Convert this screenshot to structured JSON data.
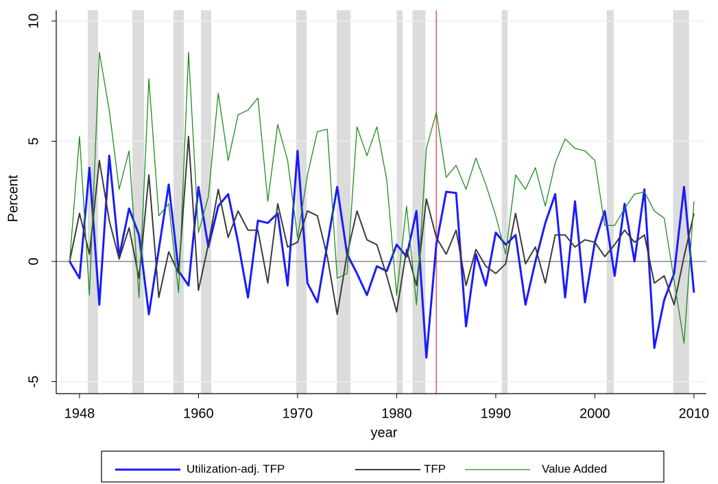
{
  "chart_data": {
    "type": "line",
    "x_label": "year",
    "y_label": "Percent",
    "x": [
      1947,
      1948,
      1949,
      1950,
      1951,
      1952,
      1953,
      1954,
      1955,
      1956,
      1957,
      1958,
      1959,
      1960,
      1961,
      1962,
      1963,
      1964,
      1965,
      1966,
      1967,
      1968,
      1969,
      1970,
      1971,
      1972,
      1973,
      1974,
      1975,
      1976,
      1977,
      1978,
      1979,
      1980,
      1981,
      1982,
      1983,
      1984,
      1985,
      1986,
      1987,
      1988,
      1989,
      1990,
      1991,
      1992,
      1993,
      1994,
      1995,
      1996,
      1997,
      1998,
      1999,
      2000,
      2001,
      2002,
      2003,
      2004,
      2005,
      2006,
      2007,
      2008,
      2009,
      2010
    ],
    "series": [
      {
        "name": "Utilization-adj. TFP",
        "color": "#1a1aff",
        "width": 3,
        "values": [
          0,
          -0.7,
          3.9,
          -1.8,
          4.4,
          0.2,
          2.2,
          1.1,
          -2.2,
          0.5,
          3.2,
          -0.4,
          -1.0,
          3.1,
          0.6,
          2.3,
          2.8,
          0.8,
          -1.5,
          1.7,
          1.6,
          2.0,
          -1.0,
          4.6,
          -0.9,
          -1.7,
          0.7,
          3.1,
          0.3,
          -0.5,
          -1.4,
          -0.2,
          -0.4,
          0.7,
          0.2,
          2.1,
          -4.0,
          0.7,
          2.9,
          2.85,
          -2.7,
          0.3,
          -1.0,
          1.2,
          0.7,
          1.1,
          -1.8,
          0.0,
          1.6,
          2.8,
          -1.5,
          2.5,
          -1.7,
          0.8,
          2.1,
          -0.6,
          2.4,
          0.0,
          3.0,
          -3.6,
          -1.6,
          -0.5,
          3.1,
          -1.3
        ]
      },
      {
        "name": "TFP",
        "color": "#3a3a3a",
        "width": 2,
        "values": [
          0,
          2.0,
          0.3,
          4.2,
          1.7,
          0.1,
          1.4,
          -0.7,
          3.6,
          -1.5,
          0.4,
          -0.5,
          5.2,
          -1.2,
          0.7,
          3.0,
          1.0,
          2.1,
          1.3,
          1.3,
          -0.9,
          2.4,
          0.6,
          0.8,
          2.1,
          1.9,
          0.2,
          -2.2,
          0.3,
          2.1,
          0.9,
          0.7,
          -0.6,
          -2.1,
          0.5,
          -1.0,
          2.6,
          1.0,
          0.3,
          1.3,
          -1.0,
          0.5,
          -0.2,
          -0.5,
          -0.1,
          2.0,
          -0.1,
          0.6,
          -0.9,
          1.1,
          1.1,
          0.6,
          0.9,
          0.8,
          0.2,
          0.7,
          1.3,
          0.8,
          1.1,
          -0.9,
          -0.6,
          -1.8,
          0.2,
          2.0
        ]
      },
      {
        "name": "Value Added",
        "color": "#1f8a1f",
        "width": 1.3,
        "values": [
          0,
          5.2,
          -1.4,
          8.7,
          6.3,
          3.0,
          4.6,
          -1.5,
          7.6,
          1.9,
          2.4,
          -1.3,
          8.7,
          1.2,
          2.7,
          7.0,
          4.2,
          6.1,
          6.3,
          6.8,
          2.5,
          5.7,
          4.2,
          1.0,
          3.6,
          5.4,
          5.5,
          -0.7,
          -0.5,
          5.6,
          4.4,
          5.6,
          3.4,
          -1.4,
          2.3,
          -1.8,
          4.7,
          6.2,
          3.5,
          4.0,
          3.0,
          4.3,
          3.2,
          1.9,
          0.3,
          3.6,
          3.0,
          3.9,
          2.3,
          4.1,
          5.1,
          4.7,
          4.6,
          4.2,
          1.5,
          1.5,
          2.2,
          2.8,
          2.9,
          2.1,
          1.8,
          -0.8,
          -3.4,
          2.5
        ]
      }
    ],
    "xlim": [
      1945.65,
      2011.25
    ],
    "ylim": [
      -5.5,
      10.45
    ],
    "xticks": [
      1948,
      1960,
      1970,
      1980,
      1990,
      2000,
      2010
    ],
    "yticks": [
      -5,
      0,
      5,
      10
    ],
    "grid": true,
    "shaded_periods": [
      [
        1948.83,
        1949.87
      ],
      [
        1953.33,
        1954.5
      ],
      [
        1957.48,
        1958.52
      ],
      [
        1960.25,
        1961.29
      ],
      [
        1969.87,
        1970.91
      ],
      [
        1973.95,
        1975.34
      ],
      [
        1980.0,
        1980.6
      ],
      [
        1981.6,
        1982.9
      ],
      [
        1990.6,
        1991.2
      ],
      [
        2001.2,
        2001.9
      ],
      [
        2007.9,
        2009.5
      ]
    ],
    "shade_color": "#dcdcdc",
    "reference_line_x": 1984,
    "reference_line_color": "#e8283c",
    "reference_line_y": 0,
    "legend": "bottom"
  }
}
